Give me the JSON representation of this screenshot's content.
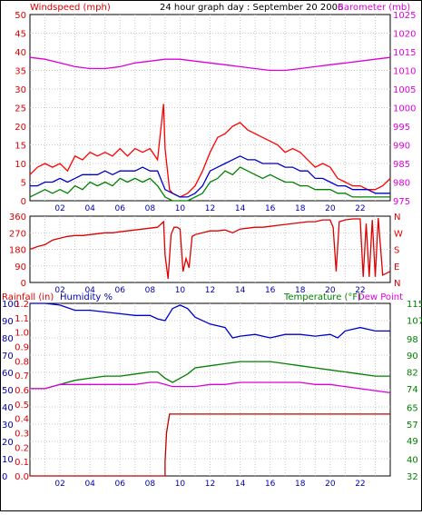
{
  "header": {
    "left_label": "Windspeed (mph)",
    "title": "24 hour graph day : September 20 2006",
    "right_label": "Barometer (mb)"
  },
  "colors": {
    "wind": "#dd0000",
    "gust": "#ff0000",
    "barometer": "#dd00dd",
    "blue": "#0000aa",
    "green": "#008000",
    "frame": "#000000"
  },
  "chart_data": [
    {
      "id": "wind_baro",
      "type": "line",
      "xlim": [
        0,
        24
      ],
      "ylim": [
        0,
        50
      ],
      "y2lim": [
        975,
        1025
      ],
      "x_ticks": [
        "02",
        "04",
        "06",
        "08",
        "10",
        "12",
        "14",
        "16",
        "18",
        "20",
        "22"
      ],
      "y_ticks": [
        "0",
        "5",
        "10",
        "15",
        "20",
        "25",
        "30",
        "35",
        "40",
        "45",
        "50"
      ],
      "y2_ticks": [
        "975",
        "980",
        "985",
        "990",
        "995",
        "1000",
        "1005",
        "1010",
        "1015",
        "1020",
        "1025"
      ],
      "series": [
        {
          "key": "gust",
          "axis": "left",
          "color": "#ff0000",
          "x": [
            0,
            0.5,
            1,
            1.5,
            2,
            2.5,
            3,
            3.5,
            4,
            4.5,
            5,
            5.5,
            6,
            6.5,
            7,
            7.5,
            8,
            8.5,
            8.9,
            9,
            9.3,
            9.5,
            10,
            10.5,
            11,
            11.5,
            12,
            12.5,
            13,
            13.5,
            14,
            14.5,
            15,
            15.5,
            16,
            16.5,
            17,
            17.5,
            18,
            18.5,
            19,
            19.5,
            20,
            20.5,
            21,
            21.5,
            22,
            22.5,
            23,
            23.5,
            24
          ],
          "y": [
            7,
            9,
            10,
            9,
            10,
            8,
            12,
            11,
            13,
            12,
            13,
            12,
            14,
            12,
            14,
            13,
            14,
            11,
            26,
            14,
            3,
            2,
            1,
            2,
            4,
            8,
            13,
            17,
            18,
            20,
            21,
            19,
            18,
            17,
            16,
            15,
            13,
            14,
            13,
            11,
            9,
            10,
            9,
            6,
            5,
            4,
            4,
            3,
            3,
            4,
            6
          ]
        },
        {
          "key": "wind",
          "axis": "left",
          "color": "#0000cc",
          "x": [
            0,
            0.5,
            1,
            1.5,
            2,
            2.5,
            3,
            3.5,
            4,
            4.5,
            5,
            5.5,
            6,
            6.5,
            7,
            7.5,
            8,
            8.5,
            9,
            9.5,
            10,
            10.5,
            11,
            11.5,
            12,
            12.5,
            13,
            13.5,
            14,
            14.5,
            15,
            15.5,
            16,
            16.5,
            17,
            17.5,
            18,
            18.5,
            19,
            19.5,
            20,
            20.5,
            21,
            21.5,
            22,
            22.5,
            23,
            23.5,
            24
          ],
          "y": [
            4,
            4,
            5,
            5,
            6,
            5,
            6,
            7,
            7,
            7,
            8,
            7,
            8,
            8,
            8,
            9,
            8,
            8,
            3,
            2,
            1,
            1,
            2,
            4,
            8,
            9,
            10,
            11,
            12,
            11,
            11,
            10,
            10,
            10,
            9,
            9,
            8,
            8,
            6,
            6,
            5,
            4,
            4,
            3,
            3,
            3,
            2,
            2,
            2
          ]
        },
        {
          "key": "avg",
          "axis": "left",
          "color": "#008000",
          "x": [
            0,
            0.5,
            1,
            1.5,
            2,
            2.5,
            3,
            3.5,
            4,
            4.5,
            5,
            5.5,
            6,
            6.5,
            7,
            7.5,
            8,
            8.5,
            9,
            9.5,
            10,
            10.5,
            11,
            11.5,
            12,
            12.5,
            13,
            13.5,
            14,
            14.5,
            15,
            15.5,
            16,
            16.5,
            17,
            17.5,
            18,
            18.5,
            19,
            19.5,
            20,
            20.5,
            21,
            21.5,
            22,
            22.5,
            23,
            23.5,
            24
          ],
          "y": [
            1,
            2,
            3,
            2,
            3,
            2,
            4,
            3,
            5,
            4,
            5,
            4,
            6,
            5,
            6,
            5,
            6,
            4,
            1,
            0,
            0,
            0,
            1,
            2,
            5,
            6,
            8,
            7,
            9,
            8,
            7,
            6,
            7,
            6,
            5,
            5,
            4,
            4,
            3,
            3,
            3,
            2,
            2,
            1,
            1,
            1,
            1,
            1,
            1
          ]
        },
        {
          "key": "barometer",
          "axis": "right",
          "color": "#dd00dd",
          "x": [
            0,
            1,
            2,
            3,
            4,
            5,
            6,
            7,
            8,
            9,
            10,
            11,
            12,
            13,
            14,
            15,
            16,
            17,
            18,
            19,
            20,
            21,
            22,
            23,
            24
          ],
          "y": [
            1013.5,
            1013,
            1012,
            1011,
            1010.5,
            1010.5,
            1011,
            1012,
            1012.5,
            1013,
            1013,
            1012.5,
            1012,
            1011.5,
            1011,
            1010.5,
            1010,
            1010,
            1010.5,
            1011,
            1011.5,
            1012,
            1012.5,
            1013,
            1013.5
          ]
        }
      ]
    },
    {
      "id": "direction",
      "type": "line",
      "xlim": [
        0,
        24
      ],
      "ylim": [
        0,
        360
      ],
      "y_ticks": [
        "0",
        "90",
        "180",
        "270",
        "360"
      ],
      "y2_ticks": [
        "N",
        "E",
        "S",
        "W",
        "N"
      ],
      "series": [
        {
          "key": "direction",
          "axis": "left",
          "color": "#dd0000",
          "x": [
            0,
            0.5,
            1,
            1.5,
            2,
            2.5,
            3,
            3.5,
            4,
            4.5,
            5,
            5.5,
            6,
            6.5,
            7,
            7.5,
            8,
            8.5,
            8.9,
            9,
            9.2,
            9.4,
            9.6,
            9.8,
            10,
            10.2,
            10.4,
            10.6,
            10.8,
            11,
            11.5,
            12,
            12.5,
            13,
            13.5,
            14,
            14.5,
            15,
            15.5,
            16,
            16.5,
            17,
            17.5,
            18,
            18.5,
            19,
            19.5,
            20,
            20.2,
            20.4,
            20.6,
            21,
            21.5,
            22,
            22.2,
            22.4,
            22.6,
            22.8,
            23,
            23.2,
            23.5,
            24
          ],
          "y": [
            180,
            195,
            205,
            230,
            240,
            250,
            255,
            255,
            260,
            265,
            270,
            270,
            275,
            280,
            285,
            290,
            295,
            300,
            330,
            150,
            20,
            260,
            300,
            300,
            290,
            60,
            130,
            80,
            250,
            260,
            270,
            280,
            280,
            285,
            270,
            290,
            295,
            300,
            300,
            305,
            310,
            315,
            320,
            325,
            330,
            330,
            340,
            340,
            300,
            60,
            330,
            340,
            345,
            345,
            30,
            320,
            30,
            340,
            30,
            350,
            40,
            60
          ]
        }
      ]
    },
    {
      "id": "rain_hum_temp",
      "type": "line",
      "xlim": [
        0,
        24
      ],
      "rain_ylim": [
        0,
        1.2
      ],
      "hum_ylim": [
        0,
        100
      ],
      "temp_ylim": [
        32,
        115
      ],
      "rain_ticks": [
        "0.0",
        "0.1",
        "0.2",
        "0.3",
        "0.4",
        "0.5",
        "0.6",
        "0.7",
        "0.8",
        "0.9",
        "1.0",
        "1.1",
        "1.2"
      ],
      "hum_ticks": [
        "0",
        "10",
        "20",
        "30",
        "40",
        "50",
        "60",
        "70",
        "80",
        "90",
        "100"
      ],
      "temp_ticks": [
        "32",
        "40",
        "49",
        "57",
        "65",
        "74",
        "82",
        "90",
        "98",
        "107",
        "115"
      ],
      "labels": {
        "rainfall": "Rainfall (in)",
        "humidity": "Humidity %",
        "temperature": "Temperature (°F)",
        "dewpoint": "Dew Point"
      },
      "series": [
        {
          "key": "humidity",
          "axis": "hum",
          "color": "#0000cc",
          "x": [
            0,
            1,
            2,
            3,
            4,
            5,
            6,
            7,
            8,
            8.5,
            9,
            9.5,
            10,
            10.5,
            11,
            12,
            13,
            13.5,
            14,
            15,
            16,
            17,
            18,
            19,
            20,
            20.5,
            21,
            22,
            23,
            24
          ],
          "y": [
            100,
            100,
            99,
            96,
            96,
            95,
            94,
            93,
            93,
            91,
            90,
            97,
            99,
            97,
            92,
            88,
            86,
            80,
            81,
            82,
            80,
            82,
            82,
            81,
            82,
            80,
            84,
            86,
            84,
            84
          ]
        },
        {
          "key": "temperature",
          "axis": "temp",
          "color": "#008000",
          "x": [
            0,
            1,
            2,
            3,
            4,
            5,
            6,
            7,
            8,
            8.5,
            9,
            9.5,
            10,
            10.5,
            11,
            12,
            13,
            14,
            15,
            16,
            17,
            18,
            19,
            20,
            21,
            22,
            23,
            24
          ],
          "y": [
            74,
            74,
            76,
            78,
            79,
            80,
            80,
            81,
            82,
            82,
            79,
            77,
            79,
            81,
            84,
            85,
            86,
            87,
            87,
            87,
            86,
            85,
            84,
            83,
            82,
            81,
            80,
            80
          ]
        },
        {
          "key": "dewpoint",
          "axis": "temp",
          "color": "#dd00dd",
          "x": [
            0,
            1,
            2,
            3,
            4,
            5,
            6,
            7,
            8,
            8.5,
            9,
            9.5,
            10,
            11,
            12,
            13,
            14,
            15,
            16,
            17,
            18,
            19,
            20,
            21,
            22,
            23,
            24
          ],
          "y": [
            74,
            74,
            76,
            76,
            76,
            76,
            76,
            76,
            77,
            77,
            76,
            75,
            75,
            75,
            76,
            76,
            77,
            77,
            77,
            77,
            77,
            76,
            76,
            75,
            74,
            73,
            72
          ]
        },
        {
          "key": "rainfall",
          "axis": "rain",
          "color": "#bb0000",
          "x": [
            0,
            9.0,
            9.0,
            9.1,
            9.3,
            24
          ],
          "y": [
            0,
            0,
            0.1,
            0.3,
            0.43,
            0.43
          ]
        }
      ]
    }
  ]
}
